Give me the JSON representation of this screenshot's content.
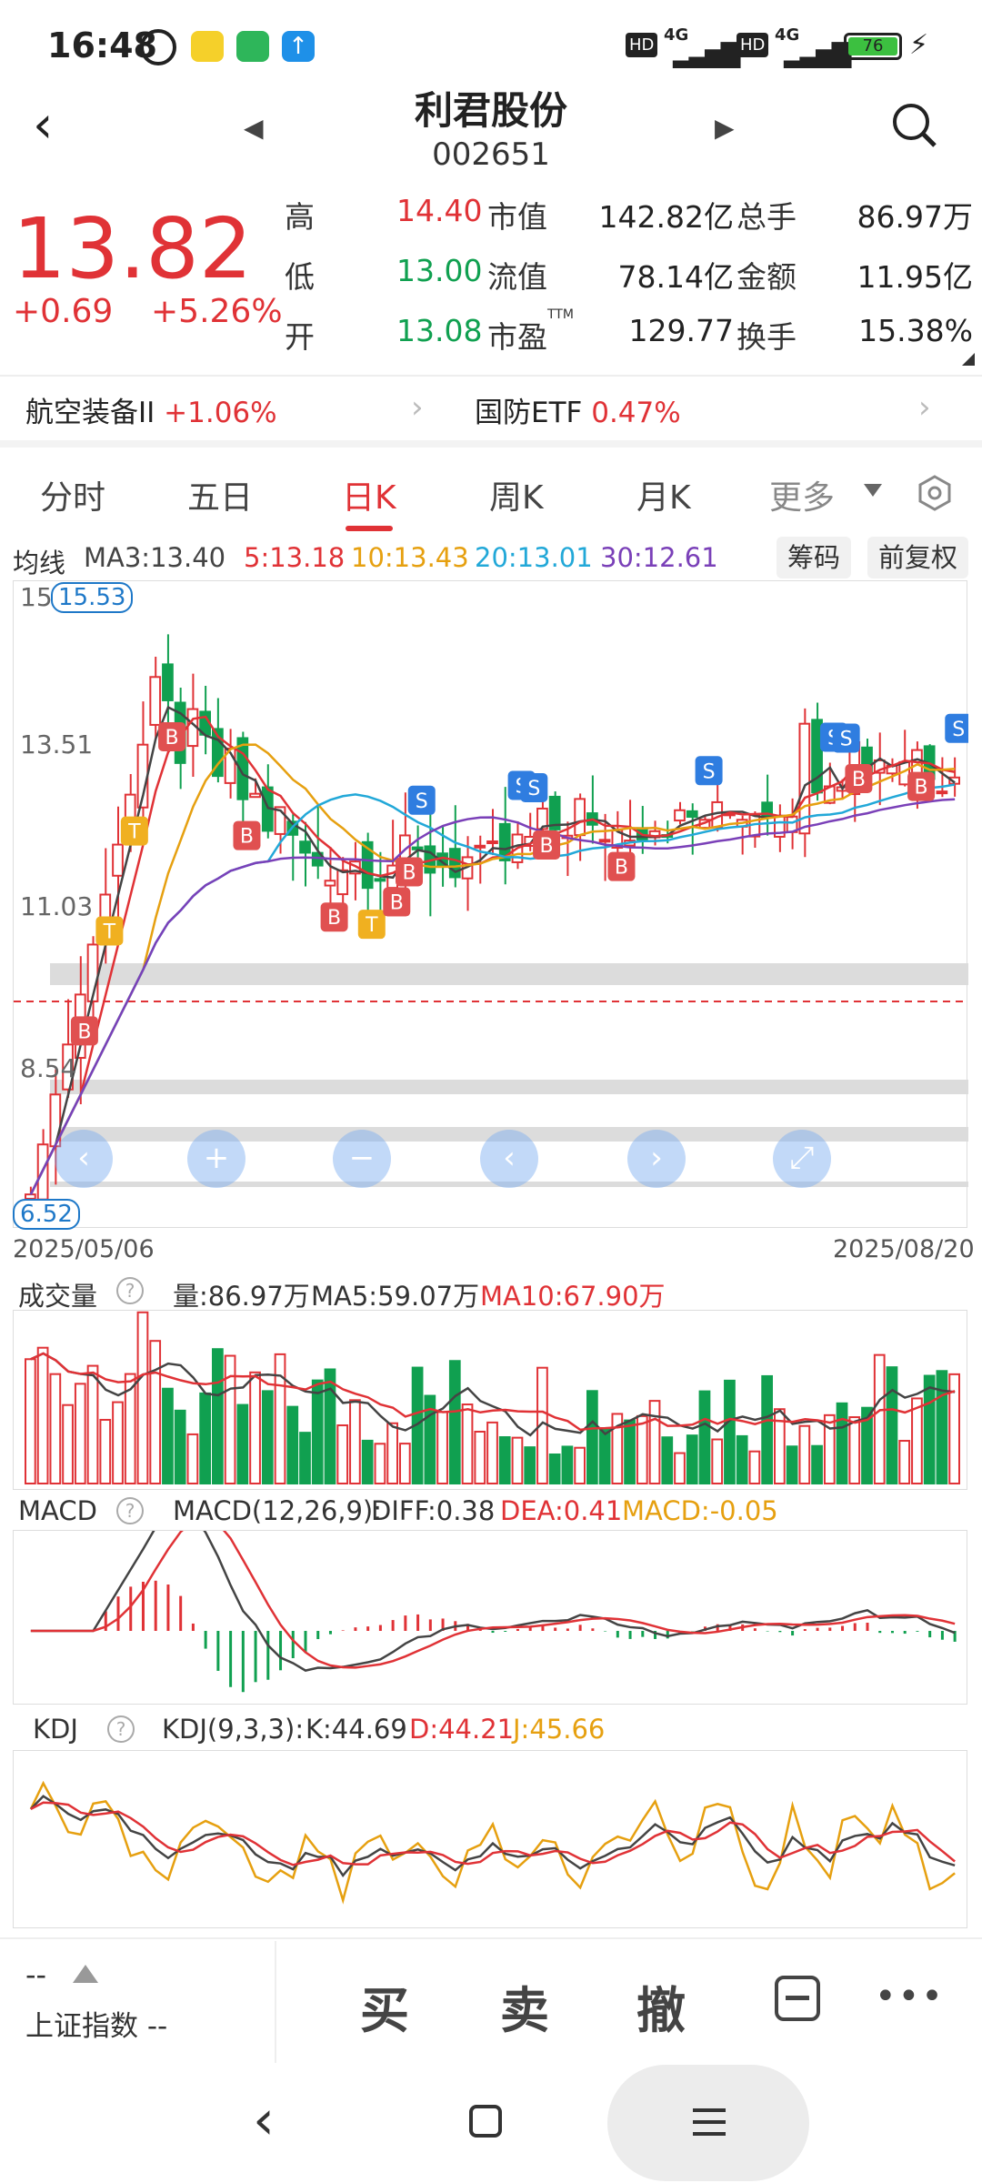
{
  "status": {
    "time": "16:48",
    "battery": "76",
    "net1": "4G",
    "net2": "4G",
    "hd1": "HD",
    "hd2": "HD"
  },
  "header": {
    "name": "利君股份",
    "code": "002651"
  },
  "quote": {
    "price": "13.82",
    "change": "+0.69",
    "change_pct": "+5.26%",
    "rows": [
      {
        "l1": "高",
        "v1": "14.40",
        "l2": "市值",
        "v2": "142.82亿",
        "l3": "总手",
        "v3": "86.97万",
        "c1": "red"
      },
      {
        "l1": "低",
        "v1": "13.00",
        "l2": "流值",
        "v2": "78.14亿",
        "l3": "金额",
        "v3": "11.95亿",
        "c1": "green"
      },
      {
        "l1": "开",
        "v1": "13.08",
        "l2": "市盈",
        "l2sup": "TTM",
        "v2": "129.77",
        "l3": "换手",
        "v3": "15.38%",
        "c1": "green"
      }
    ]
  },
  "sectors": [
    {
      "name": "航空装备II",
      "pct": "+1.06%"
    },
    {
      "name": "国防ETF",
      "pct": "0.47%"
    }
  ],
  "tabs": [
    "分时",
    "五日",
    "日K",
    "周K",
    "月K",
    "更多"
  ],
  "active_tab": "日K",
  "ma_legend": {
    "title": "均线",
    "ma3": "MA3:13.40",
    "ma5": "5:13.18",
    "ma10": "10:13.43",
    "ma20": "20:13.01",
    "ma30": "30:12.61"
  },
  "chips": {
    "chouma": "筹码",
    "fuquan": "前复权"
  },
  "kline": {
    "y_labels": [
      "15",
      "13.51",
      "11.03",
      "8.54"
    ],
    "high_mark": "15.53",
    "low_mark": "6.52",
    "date_start": "2025/05/06",
    "date_end": "2025/08/20",
    "nav_buttons": [
      "‹",
      "+",
      "−",
      "‹",
      "›",
      "⤢"
    ]
  },
  "volume": {
    "title": "成交量",
    "vol": "量:86.97万",
    "ma5": "MA5:59.07万",
    "ma10": "MA10:67.90万"
  },
  "macd": {
    "title": "MACD",
    "params": "MACD(12,26,9):",
    "diff": "DIFF:0.38",
    "dea": "DEA:0.41",
    "macd": "MACD:-0.05"
  },
  "kdj": {
    "title": "KDJ",
    "params": "KDJ(9,3,3):",
    "k": "K:44.69",
    "d": "D:44.21",
    "j": "J:45.66"
  },
  "bottom": {
    "index_val": "--",
    "index_name": "上证指数",
    "index_chg": "--",
    "buy": "买",
    "sell": "卖",
    "cancel": "撤"
  },
  "colors": {
    "up": "#e03236",
    "down": "#10a050",
    "ma3": "#444444",
    "ma5": "#e03236",
    "ma10": "#e6a010",
    "ma20": "#22a8d8",
    "ma30": "#7a40b8"
  }
}
